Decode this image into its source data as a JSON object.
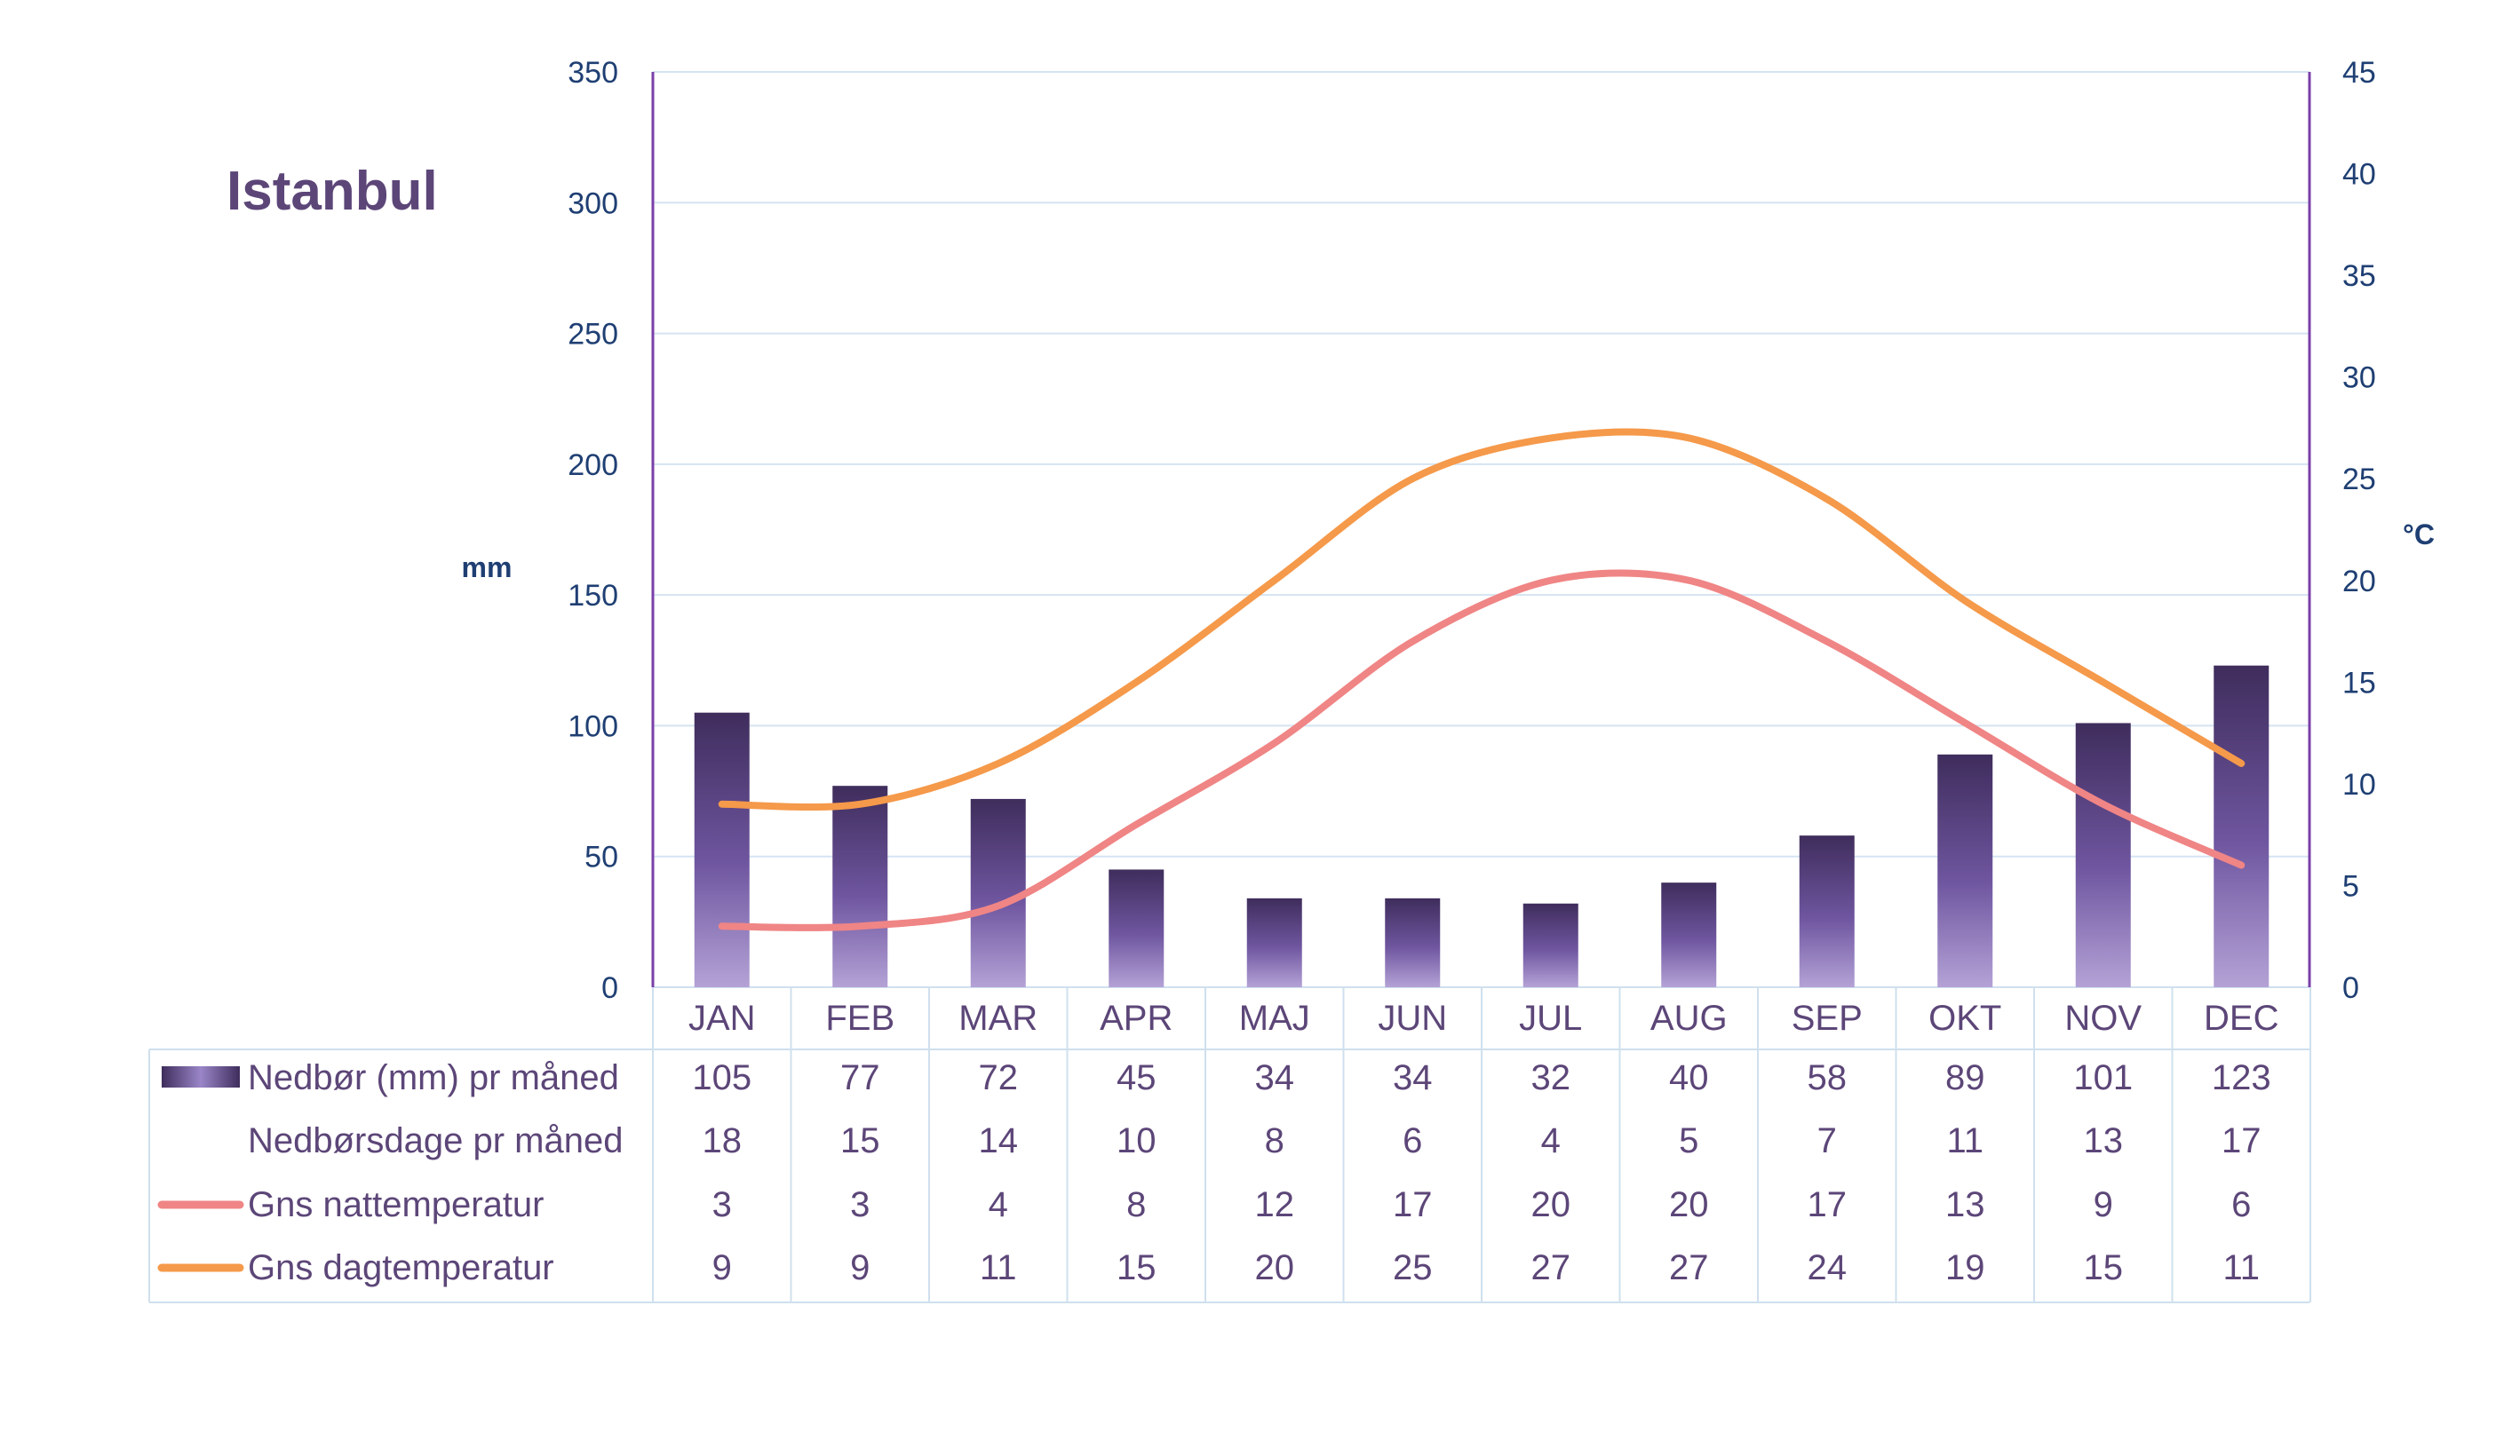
{
  "chart_data": {
    "type": "bar",
    "title": "Istanbul",
    "categories": [
      "JAN",
      "FEB",
      "MAR",
      "APR",
      "MAJ",
      "JUN",
      "JUL",
      "AUG",
      "SEP",
      "OKT",
      "NOV",
      "DEC"
    ],
    "ylabel_left": "mm",
    "ylabel_right": "°C",
    "ylim_left": [
      0,
      350
    ],
    "yticks_left": [
      0,
      50,
      100,
      150,
      200,
      250,
      300,
      350
    ],
    "ylim_right": [
      0,
      45
    ],
    "yticks_right": [
      0,
      5,
      10,
      15,
      20,
      25,
      30,
      35,
      40,
      45
    ],
    "grid": true,
    "series": [
      {
        "name": "Nedbør (mm) pr måned",
        "kind": "bar",
        "axis": "left",
        "color": "#5a4478",
        "values": [
          105,
          77,
          72,
          45,
          34,
          34,
          32,
          40,
          58,
          89,
          101,
          123
        ]
      },
      {
        "name": "Nedbørsdage pr måned",
        "kind": "table",
        "values": [
          18,
          15,
          14,
          10,
          8,
          6,
          4,
          5,
          7,
          11,
          13,
          17
        ]
      },
      {
        "name": "Gns nattemperatur",
        "kind": "line",
        "axis": "right",
        "color": "#f08585",
        "values": [
          3,
          3,
          4,
          8,
          12,
          17,
          20,
          20,
          17,
          13,
          9,
          6
        ]
      },
      {
        "name": "Gns dagtemperatur",
        "kind": "line",
        "axis": "right",
        "color": "#f5994a",
        "values": [
          9,
          9,
          11,
          15,
          20,
          25,
          27,
          27,
          24,
          19,
          15,
          11
        ]
      }
    ]
  }
}
